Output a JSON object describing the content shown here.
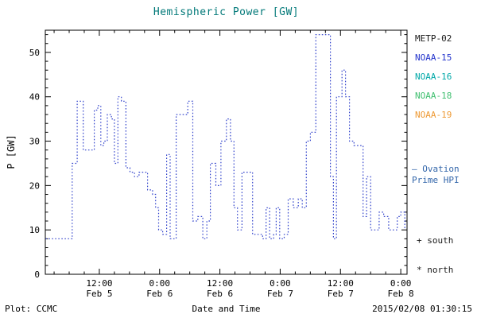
{
  "colors": {
    "title": "#007878",
    "frame": "#000000",
    "line": "#3344cc",
    "ovation": "#3366aa",
    "marker_text": "#1a1a1a"
  },
  "legend": {
    "satellites": [
      {
        "label": "METP-02",
        "color": "#1a1a1a"
      },
      {
        "label": "NOAA-15",
        "color": "#2233cc"
      },
      {
        "label": "NOAA-16",
        "color": "#00a8a8"
      },
      {
        "label": "NOAA-18",
        "color": "#3fbf6f"
      },
      {
        "label": "NOAA-19",
        "color": "#ee9933"
      }
    ],
    "ovation": {
      "marker": "—",
      "lines": [
        "Ovation",
        "Prime HPI"
      ],
      "color": "#3366aa"
    },
    "markers": [
      {
        "symbol": "+",
        "label": "south"
      },
      {
        "symbol": "*",
        "label": "north"
      }
    ]
  },
  "footer": {
    "left": "Plot: CCMC",
    "right": "2015/02/08 01:30:15"
  },
  "chart_data": {
    "type": "line",
    "style": "dotted-step",
    "title": "Hemispheric Power [GW]",
    "xlabel": "Date and Time",
    "ylabel": "P [GW]",
    "ylim": [
      0,
      55
    ],
    "xlim_hours": [
      1.25,
      73.25
    ],
    "grid": false,
    "legend_position": "right",
    "y_ticks": [
      0,
      10,
      20,
      30,
      40,
      50
    ],
    "x_ticks": [
      {
        "hour": 12,
        "time": "12:00",
        "date": "Feb 5"
      },
      {
        "hour": 24,
        "time": "0:00",
        "date": "Feb 6"
      },
      {
        "hour": 36,
        "time": "12:00",
        "date": "Feb 6"
      },
      {
        "hour": 48,
        "time": "0:00",
        "date": "Feb 7"
      },
      {
        "hour": 60,
        "time": "12:00",
        "date": "Feb 7"
      },
      {
        "hour": 72,
        "time": "0:00",
        "date": "Feb 8"
      }
    ],
    "series": [
      {
        "name": "NOAA-15 Ovation Prime HPI",
        "color": "#3344cc",
        "units": "GW",
        "x_units": "hours since Feb 5 00:00",
        "points": [
          [
            1.3,
            8
          ],
          [
            6.1,
            8
          ],
          [
            6.6,
            25
          ],
          [
            7.6,
            39
          ],
          [
            8.8,
            28
          ],
          [
            10.5,
            28
          ],
          [
            11.0,
            37
          ],
          [
            11.7,
            38
          ],
          [
            12.3,
            29
          ],
          [
            12.9,
            30
          ],
          [
            13.6,
            36
          ],
          [
            14.4,
            35
          ],
          [
            15.0,
            25
          ],
          [
            15.7,
            40
          ],
          [
            16.4,
            39
          ],
          [
            17.3,
            24
          ],
          [
            18.1,
            23
          ],
          [
            19.0,
            22
          ],
          [
            19.9,
            23
          ],
          [
            21.0,
            23
          ],
          [
            21.6,
            19
          ],
          [
            22.6,
            18
          ],
          [
            23.2,
            15
          ],
          [
            23.8,
            10
          ],
          [
            24.6,
            9
          ],
          [
            25.4,
            27
          ],
          [
            26.1,
            8
          ],
          [
            27.3,
            36
          ],
          [
            28.6,
            36
          ],
          [
            29.6,
            39
          ],
          [
            30.6,
            12
          ],
          [
            31.6,
            13
          ],
          [
            32.6,
            8
          ],
          [
            33.4,
            12
          ],
          [
            34.1,
            25
          ],
          [
            35.2,
            20
          ],
          [
            36.2,
            30
          ],
          [
            37.3,
            35
          ],
          [
            38.1,
            30
          ],
          [
            38.8,
            15
          ],
          [
            39.5,
            10
          ],
          [
            40.4,
            23
          ],
          [
            41.6,
            23
          ],
          [
            42.5,
            9
          ],
          [
            43.5,
            9
          ],
          [
            44.5,
            8
          ],
          [
            45.2,
            15
          ],
          [
            45.9,
            8
          ],
          [
            46.7,
            9
          ],
          [
            47.2,
            15
          ],
          [
            47.9,
            8
          ],
          [
            48.8,
            9
          ],
          [
            49.6,
            17
          ],
          [
            50.6,
            15
          ],
          [
            51.6,
            17
          ],
          [
            52.4,
            15
          ],
          [
            53.2,
            30
          ],
          [
            54.0,
            32
          ],
          [
            55.1,
            54
          ],
          [
            57.4,
            54
          ],
          [
            58.0,
            22
          ],
          [
            58.6,
            8
          ],
          [
            59.2,
            40
          ],
          [
            60.3,
            46
          ],
          [
            61.0,
            40
          ],
          [
            61.8,
            30
          ],
          [
            62.7,
            29
          ],
          [
            63.8,
            29
          ],
          [
            64.5,
            13
          ],
          [
            65.2,
            22
          ],
          [
            66.0,
            10
          ],
          [
            66.9,
            10
          ],
          [
            67.7,
            14
          ],
          [
            68.6,
            13
          ],
          [
            69.6,
            10
          ],
          [
            70.6,
            10
          ],
          [
            71.3,
            13
          ],
          [
            72.0,
            14
          ],
          [
            72.8,
            10
          ]
        ]
      }
    ]
  }
}
